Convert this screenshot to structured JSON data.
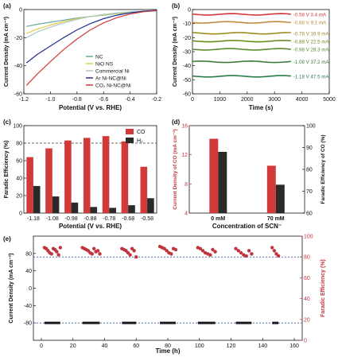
{
  "panels": {
    "a": {
      "label": "(a)",
      "type": "line",
      "xlabel": "Potential (V vs. RHE)",
      "ylabel": "Current Density (mA cm⁻²)",
      "xlim": [
        -1.2,
        -0.2
      ],
      "ylim": [
        -60,
        0
      ],
      "xticks": [
        "-1.2",
        "-1.0",
        "-0.8",
        "-0.6",
        "-0.4",
        "-0.2"
      ],
      "yticks": [
        "-60",
        "-40",
        "-20",
        "0"
      ],
      "legend_position": "bottom-right",
      "series": [
        {
          "name": "NC",
          "color": "#6aa8a8",
          "x": [
            -1.18,
            -1.1,
            -1.0,
            -0.9,
            -0.8,
            -0.7,
            -0.6,
            -0.5,
            -0.4,
            -0.3,
            -0.2
          ],
          "y": [
            -12,
            -10.5,
            -9,
            -7.5,
            -6,
            -5,
            -4,
            -3,
            -2.2,
            -1.5,
            -1
          ]
        },
        {
          "name": "NiO NS",
          "color": "#e6c94a",
          "x": [
            -1.18,
            -1.1,
            -1.0,
            -0.9,
            -0.8,
            -0.7,
            -0.6,
            -0.5,
            -0.4,
            -0.3,
            -0.2
          ],
          "y": [
            -17,
            -14,
            -11,
            -8.5,
            -6.5,
            -5,
            -3.8,
            -2.8,
            -2,
            -1.3,
            -0.8
          ]
        },
        {
          "name": "Commercial Ni",
          "color": "#a8c8c8",
          "x": [
            -1.18,
            -1.1,
            -1.0,
            -0.9,
            -0.8,
            -0.7,
            -0.6,
            -0.5,
            -0.4,
            -0.3,
            -0.2
          ],
          "y": [
            -20,
            -16,
            -12.5,
            -9.5,
            -7,
            -5,
            -3.5,
            -2.4,
            -1.6,
            -1,
            -0.6
          ]
        },
        {
          "name": "Ar Ni-NC@Ni",
          "color": "#1f2f8f",
          "x": [
            -1.18,
            -1.1,
            -1.0,
            -0.9,
            -0.8,
            -0.7,
            -0.6,
            -0.5,
            -0.4,
            -0.3,
            -0.2
          ],
          "y": [
            -38,
            -32,
            -26,
            -20,
            -14.5,
            -10,
            -6.5,
            -4,
            -2.3,
            -1.2,
            -0.6
          ]
        },
        {
          "name": "CO₂ Ni-NC@Ni",
          "color": "#d23a3a",
          "x": [
            -1.18,
            -1.1,
            -1.0,
            -0.9,
            -0.8,
            -0.7,
            -0.6,
            -0.5,
            -0.4,
            -0.3,
            -0.2
          ],
          "y": [
            -54,
            -46,
            -37,
            -28.5,
            -21,
            -14.5,
            -9.5,
            -5.8,
            -3.2,
            -1.6,
            -0.7
          ]
        }
      ]
    },
    "b": {
      "label": "(b)",
      "type": "line",
      "xlabel": "Time (s)",
      "ylabel": "Current Density (mA cm⁻²)",
      "xlim": [
        0,
        5000
      ],
      "ylim": [
        -60,
        0
      ],
      "xticks": [
        "0",
        "1000",
        "2000",
        "3000",
        "4000",
        "5000"
      ],
      "yticks": [
        "-60",
        "-50",
        "-40",
        "-30",
        "-20",
        "-10",
        "0"
      ],
      "series": [
        {
          "name": "-0.58 V  3.4 mA",
          "color": "#d23a3a",
          "t_end": 3600,
          "y": -3.4
        },
        {
          "name": "-0.68 V  9.1 mA",
          "color": "#c08a3a",
          "t_end": 3600,
          "y": -9.1
        },
        {
          "name": "-0.78 V  16.9 mA",
          "color": "#9a8a1a",
          "t_end": 3600,
          "y": -16.9
        },
        {
          "name": "-0.88 V  22.5 mA",
          "color": "#6a8a1a",
          "t_end": 3600,
          "y": -22.5
        },
        {
          "name": "-0.98 V  28.3 mA",
          "color": "#5a8a2a",
          "t_end": 3600,
          "y": -28.3
        },
        {
          "name": "-1.08 V  37.2 mA",
          "color": "#3a7a3a",
          "t_end": 3600,
          "y": -37.2
        },
        {
          "name": "-1.18 V  47.5 mA",
          "color": "#2a7a4a",
          "t_end": 3600,
          "y": -47.5
        }
      ]
    },
    "c": {
      "label": "(c)",
      "type": "bar",
      "xlabel": "Potential (V vs. RHE)",
      "ylabel": "Faradic Efficiency (%)",
      "ylim": [
        0,
        100
      ],
      "yticks": [
        "0",
        "20",
        "40",
        "60",
        "80",
        "100"
      ],
      "reference_line": 80,
      "categories": [
        "-1.18",
        "-1.08",
        "-0.98",
        "-0.88",
        "-0.78",
        "-0.68",
        "-0.58"
      ],
      "legend_position": "top-right",
      "series": [
        {
          "name": "CO",
          "color": "#d23a3a",
          "values": [
            64,
            74,
            83,
            86,
            88,
            82,
            53
          ]
        },
        {
          "name": "H₂",
          "color": "#2a2a2a",
          "values": [
            31,
            19,
            12,
            7,
            6,
            9,
            17
          ]
        }
      ]
    },
    "d": {
      "label": "(d)",
      "type": "bar",
      "xlabel": "Concentration of SCN⁻",
      "ylabel_left": "Current Density of CO (mA cm⁻²)",
      "ylabel_right": "Faradic Efficiency of CO (%)",
      "ylim_left": [
        4,
        16
      ],
      "ylim_right": [
        60,
        100
      ],
      "yticks_left": [
        "4",
        "8",
        "12",
        "16"
      ],
      "yticks_right": [
        "60",
        "70",
        "80",
        "90",
        "100"
      ],
      "categories": [
        "0 mM",
        "70 mM"
      ],
      "series": [
        {
          "name": "Current Density of CO",
          "color": "#d23a3a",
          "axis": "left",
          "values": [
            14.2,
            10.5
          ]
        },
        {
          "name": "Faradic Efficiency of CO",
          "color": "#2a2a2a",
          "axis": "right",
          "values": [
            88,
            73
          ]
        }
      ]
    },
    "e": {
      "label": "(e)",
      "type": "scatter",
      "xlabel": "Time (h)",
      "ylabel_left": "Current Density (mA cm⁻²)",
      "ylabel_right": "Faradic Efficiency (%)",
      "xlim": [
        -5,
        165
      ],
      "ylim_left": [
        -120,
        120
      ],
      "ylim_right": [
        0,
        100
      ],
      "xticks": [
        "0",
        "20",
        "40",
        "60",
        "80",
        "100",
        "120",
        "140",
        "160"
      ],
      "yticks_left": [
        "-80",
        "-40",
        "0",
        "40",
        "80"
      ],
      "yticks_right": [
        "0",
        "20",
        "40",
        "60",
        "80",
        "100"
      ],
      "reference_left": -80,
      "reference_right": 80,
      "cycles": [
        {
          "t": [
            2,
            12
          ],
          "fe": [
            89,
            88,
            86,
            84,
            83,
            88,
            87,
            85,
            82,
            89
          ]
        },
        {
          "t": [
            26,
            37
          ],
          "fe": [
            89,
            88,
            87,
            86,
            84,
            83,
            88,
            85,
            86,
            83
          ]
        },
        {
          "t": [
            51,
            60
          ],
          "fe": [
            88,
            87,
            86,
            84,
            82,
            88,
            86,
            80
          ]
        },
        {
          "t": [
            75,
            85
          ],
          "fe": [
            90,
            89,
            88,
            86,
            84,
            83,
            88,
            87
          ]
        },
        {
          "t": [
            99,
            110
          ],
          "fe": [
            89,
            88,
            86,
            84,
            83,
            82,
            87,
            85
          ]
        },
        {
          "t": [
            123,
            133
          ],
          "fe": [
            88,
            86,
            84,
            82,
            81,
            86,
            83
          ]
        },
        {
          "t": [
            146,
            150
          ],
          "fe": [
            89,
            86,
            83,
            81
          ]
        }
      ],
      "current": -80,
      "current_color": "#1a1a1a",
      "fe_color": "#c0353d"
    }
  },
  "chart_data": [
    {
      "type": "line",
      "xlabel": "Potential (V vs. RHE)",
      "ylabel": "Current Density (mA cm⁻²)",
      "xlim": [
        -1.2,
        -0.2
      ],
      "ylim": [
        -60,
        0
      ],
      "series": [
        {
          "name": "NC"
        },
        {
          "name": "NiO NS"
        },
        {
          "name": "Commercial Ni"
        },
        {
          "name": "Ar Ni-NC@Ni"
        },
        {
          "name": "CO₂ Ni-NC@Ni"
        }
      ]
    },
    {
      "type": "line",
      "xlabel": "Time (s)",
      "ylabel": "Current Density (mA cm⁻²)",
      "xlim": [
        0,
        5000
      ],
      "ylim": [
        -60,
        0
      ],
      "series": [
        {
          "name": "-0.58 V  3.4 mA",
          "values": [
            -3.4
          ]
        },
        {
          "name": "-0.68 V  9.1 mA",
          "values": [
            -9.1
          ]
        },
        {
          "name": "-0.78 V  16.9 mA",
          "values": [
            -16.9
          ]
        },
        {
          "name": "-0.88 V  22.5 mA",
          "values": [
            -22.5
          ]
        },
        {
          "name": "-0.98 V  28.3 mA",
          "values": [
            -28.3
          ]
        },
        {
          "name": "-1.08 V  37.2 mA",
          "values": [
            -37.2
          ]
        },
        {
          "name": "-1.18 V  47.5 mA",
          "values": [
            -47.5
          ]
        }
      ]
    },
    {
      "type": "bar",
      "categories": [
        "-1.18",
        "-1.08",
        "-0.98",
        "-0.88",
        "-0.78",
        "-0.68",
        "-0.58"
      ],
      "series": [
        {
          "name": "CO",
          "values": [
            64,
            74,
            83,
            86,
            88,
            82,
            53
          ]
        },
        {
          "name": "H₂",
          "values": [
            31,
            19,
            12,
            7,
            6,
            9,
            17
          ]
        }
      ],
      "ylim": [
        0,
        100
      ]
    },
    {
      "type": "bar",
      "categories": [
        "0 mM",
        "70 mM"
      ],
      "series": [
        {
          "name": "Current Density of CO",
          "values": [
            14.2,
            10.5
          ]
        },
        {
          "name": "Faradic Efficiency of CO",
          "values": [
            88,
            73
          ]
        }
      ]
    },
    {
      "type": "scatter",
      "xlabel": "Time (h)",
      "ylabel": "Current Density (mA cm⁻²) / Faradic Efficiency (%)",
      "xlim": [
        0,
        160
      ]
    }
  ]
}
